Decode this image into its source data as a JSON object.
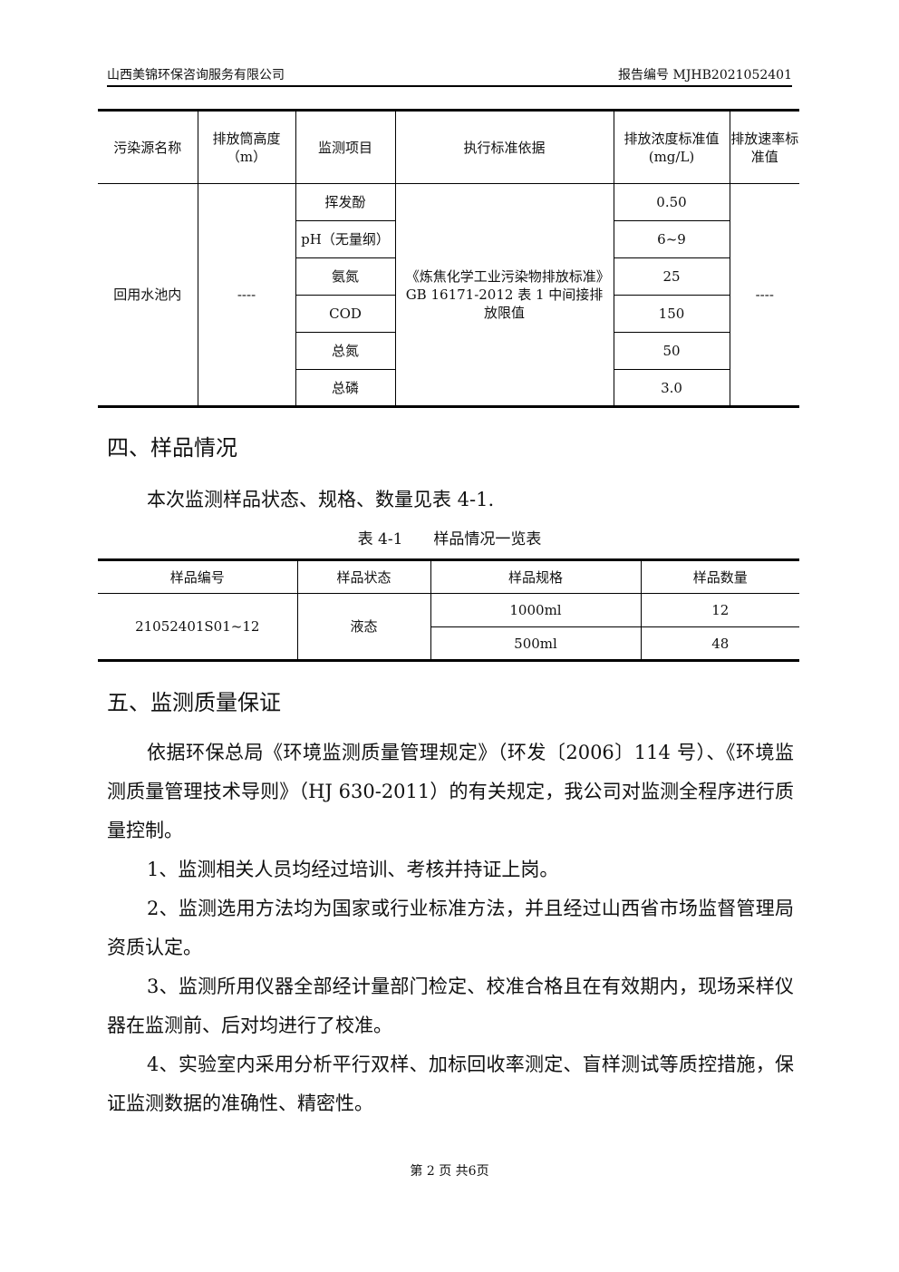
{
  "header": {
    "company": "山西美锦环保咨询服务有限公司",
    "report_no": "报告编号 MJHB2021052401"
  },
  "table1": {
    "headers": [
      "污染源名称",
      "排放筒高度（m）",
      "监测项目",
      "执行标准依据",
      "排放浓度标准值(mg/L)",
      "排放速率标准值"
    ],
    "source": "回用水池内",
    "height": "----",
    "standard": "《炼焦化学工业污染物排放标准》GB 16171-2012 表 1 中间接排放限值",
    "rate": "----",
    "items": [
      {
        "name": "挥发酚",
        "value": "0.50"
      },
      {
        "name": "pH（无量纲）",
        "value": "6~9"
      },
      {
        "name": "氨氮",
        "value": "25"
      },
      {
        "name": "COD",
        "value": "150"
      },
      {
        "name": "总氮",
        "value": "50"
      },
      {
        "name": "总磷",
        "value": "3.0"
      }
    ]
  },
  "section4": {
    "title": "四、样品情况",
    "intro": "本次监测样品状态、规格、数量见表 4-1.",
    "caption": "表 4-1　　样品情况一览表"
  },
  "table2": {
    "headers": [
      "样品编号",
      "样品状态",
      "样品规格",
      "样品数量"
    ],
    "id": "21052401S01~12",
    "state": "液态",
    "rows": [
      {
        "spec": "1000ml",
        "qty": "12"
      },
      {
        "spec": "500ml",
        "qty": "48"
      }
    ]
  },
  "section5": {
    "title": "五、监测质量保证",
    "paras": [
      "依据环保总局《环境监测质量管理规定》（环发〔2006〕114 号）、《环境监测质量管理技术导则》（HJ 630-2011）的有关规定，我公司对监测全程序进行质量控制。",
      "1、监测相关人员均经过培训、考核并持证上岗。",
      "2、监测选用方法均为国家或行业标准方法，并且经过山西省市场监督管理局资质认定。",
      "3、监测所用仪器全部经计量部门检定、校准合格且在有效期内，现场采样仪器在监测前、后对均进行了校准。",
      "4、实验室内采用分析平行双样、加标回收率测定、盲样测试等质控措施，保证监测数据的准确性、精密性。"
    ]
  },
  "footer": "第 2 页 共6页"
}
